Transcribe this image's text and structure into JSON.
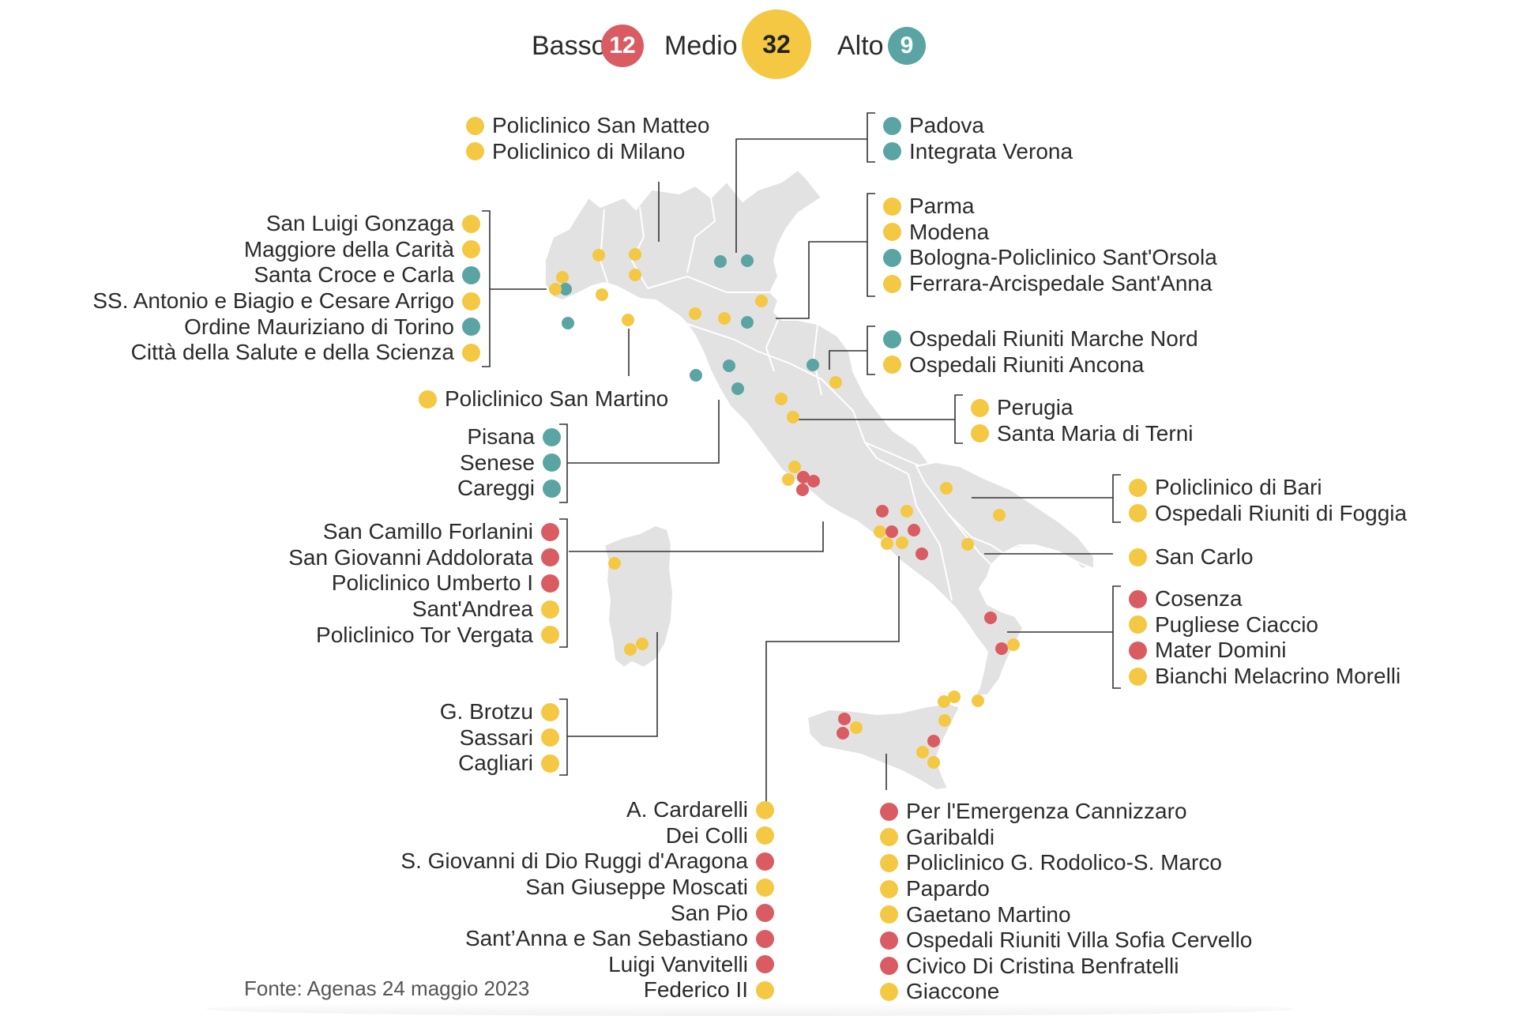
{
  "colors": {
    "basso": "#d95c62",
    "medio": "#f4c842",
    "alto": "#5aa5a4",
    "map_fill": "#e2e2e2",
    "map_border": "#ffffff",
    "leader": "#333333"
  },
  "legend": [
    {
      "key": "basso",
      "label": "Basso",
      "count": "12"
    },
    {
      "key": "medio",
      "label": "Medio",
      "count": "32"
    },
    {
      "key": "alto",
      "label": "Alto",
      "count": "9"
    }
  ],
  "groups": [
    {
      "id": "lombardia",
      "align": "left",
      "items": [
        {
          "name": "Policlinico San Matteo",
          "level": "medio"
        },
        {
          "name": "Policlinico di Milano",
          "level": "medio"
        }
      ]
    },
    {
      "id": "veneto",
      "align": "left",
      "items": [
        {
          "name": "Padova",
          "level": "alto"
        },
        {
          "name": "Integrata Verona",
          "level": "alto"
        }
      ]
    },
    {
      "id": "piemonte",
      "align": "right",
      "items": [
        {
          "name": "San Luigi Gonzaga",
          "level": "medio"
        },
        {
          "name": "Maggiore della Carità",
          "level": "medio"
        },
        {
          "name": "Santa Croce e Carla",
          "level": "alto"
        },
        {
          "name": "SS. Antonio e Biagio e Cesare Arrigo",
          "level": "medio"
        },
        {
          "name": "Ordine Mauriziano di Torino",
          "level": "alto"
        },
        {
          "name": "Città della Salute e della Scienza",
          "level": "medio"
        }
      ]
    },
    {
      "id": "emilia",
      "align": "left",
      "items": [
        {
          "name": "Parma",
          "level": "medio"
        },
        {
          "name": "Modena",
          "level": "medio"
        },
        {
          "name": "Bologna-Policlinico Sant'Orsola",
          "level": "alto"
        },
        {
          "name": "Ferrara-Arcispedale Sant'Anna",
          "level": "medio"
        }
      ]
    },
    {
      "id": "marche",
      "align": "left",
      "items": [
        {
          "name": "Ospedali Riuniti Marche Nord",
          "level": "alto"
        },
        {
          "name": "Ospedali Riuniti Ancona",
          "level": "medio"
        }
      ]
    },
    {
      "id": "liguria",
      "align": "left",
      "items": [
        {
          "name": "Policlinico San Martino",
          "level": "medio"
        }
      ]
    },
    {
      "id": "umbria",
      "align": "left",
      "items": [
        {
          "name": "Perugia",
          "level": "medio"
        },
        {
          "name": "Santa Maria di Terni",
          "level": "medio"
        }
      ]
    },
    {
      "id": "toscana",
      "align": "right",
      "items": [
        {
          "name": "Pisana",
          "level": "alto"
        },
        {
          "name": "Senese",
          "level": "alto"
        },
        {
          "name": "Careggi",
          "level": "alto"
        }
      ]
    },
    {
      "id": "puglia",
      "align": "left",
      "items": [
        {
          "name": "Policlinico di Bari",
          "level": "medio"
        },
        {
          "name": "Ospedali Riuniti di Foggia",
          "level": "medio"
        }
      ]
    },
    {
      "id": "lazio",
      "align": "right",
      "items": [
        {
          "name": "San Camillo Forlanini",
          "level": "basso"
        },
        {
          "name": "San Giovanni Addolorata",
          "level": "basso"
        },
        {
          "name": "Policlinico Umberto I",
          "level": "basso"
        },
        {
          "name": "Sant'Andrea",
          "level": "medio"
        },
        {
          "name": "Policlinico Tor Vergata",
          "level": "medio"
        }
      ]
    },
    {
      "id": "basilicata",
      "align": "left",
      "items": [
        {
          "name": "San Carlo",
          "level": "medio"
        }
      ]
    },
    {
      "id": "calabria",
      "align": "left",
      "items": [
        {
          "name": "Cosenza",
          "level": "basso"
        },
        {
          "name": "Pugliese Ciaccio",
          "level": "medio"
        },
        {
          "name": "Mater Domini",
          "level": "basso"
        },
        {
          "name": "Bianchi Melacrino Morelli",
          "level": "medio"
        }
      ]
    },
    {
      "id": "sardegna",
      "align": "right",
      "items": [
        {
          "name": "G. Brotzu",
          "level": "medio"
        },
        {
          "name": "Sassari",
          "level": "medio"
        },
        {
          "name": "Cagliari",
          "level": "medio"
        }
      ]
    },
    {
      "id": "campania",
      "align": "right",
      "items": [
        {
          "name": "A. Cardarelli",
          "level": "medio"
        },
        {
          "name": "Dei Colli",
          "level": "medio"
        },
        {
          "name": "S. Giovanni di Dio Ruggi d'Aragona",
          "level": "basso"
        },
        {
          "name": "San Giuseppe Moscati",
          "level": "medio"
        },
        {
          "name": "San Pio",
          "level": "basso"
        },
        {
          "name": "Sant’Anna e San Sebastiano",
          "level": "basso"
        },
        {
          "name": "Luigi Vanvitelli",
          "level": "basso"
        },
        {
          "name": "Federico II",
          "level": "medio"
        }
      ]
    },
    {
      "id": "sicilia",
      "align": "left",
      "items": [
        {
          "name": "Per l'Emergenza Cannizzaro",
          "level": "basso"
        },
        {
          "name": "Garibaldi",
          "level": "medio"
        },
        {
          "name": "Policlinico G. Rodolico-S. Marco",
          "level": "medio"
        },
        {
          "name": "Papardo",
          "level": "medio"
        },
        {
          "name": "Gaetano Martino",
          "level": "medio"
        },
        {
          "name": "Ospedali Riuniti Villa Sofia Cervello",
          "level": "basso"
        },
        {
          "name": "Civico Di Cristina Benfratelli",
          "level": "basso"
        },
        {
          "name": "Giaccone",
          "level": "medio"
        }
      ]
    }
  ],
  "source": "Fonte: Agenas 24 maggio 2023"
}
